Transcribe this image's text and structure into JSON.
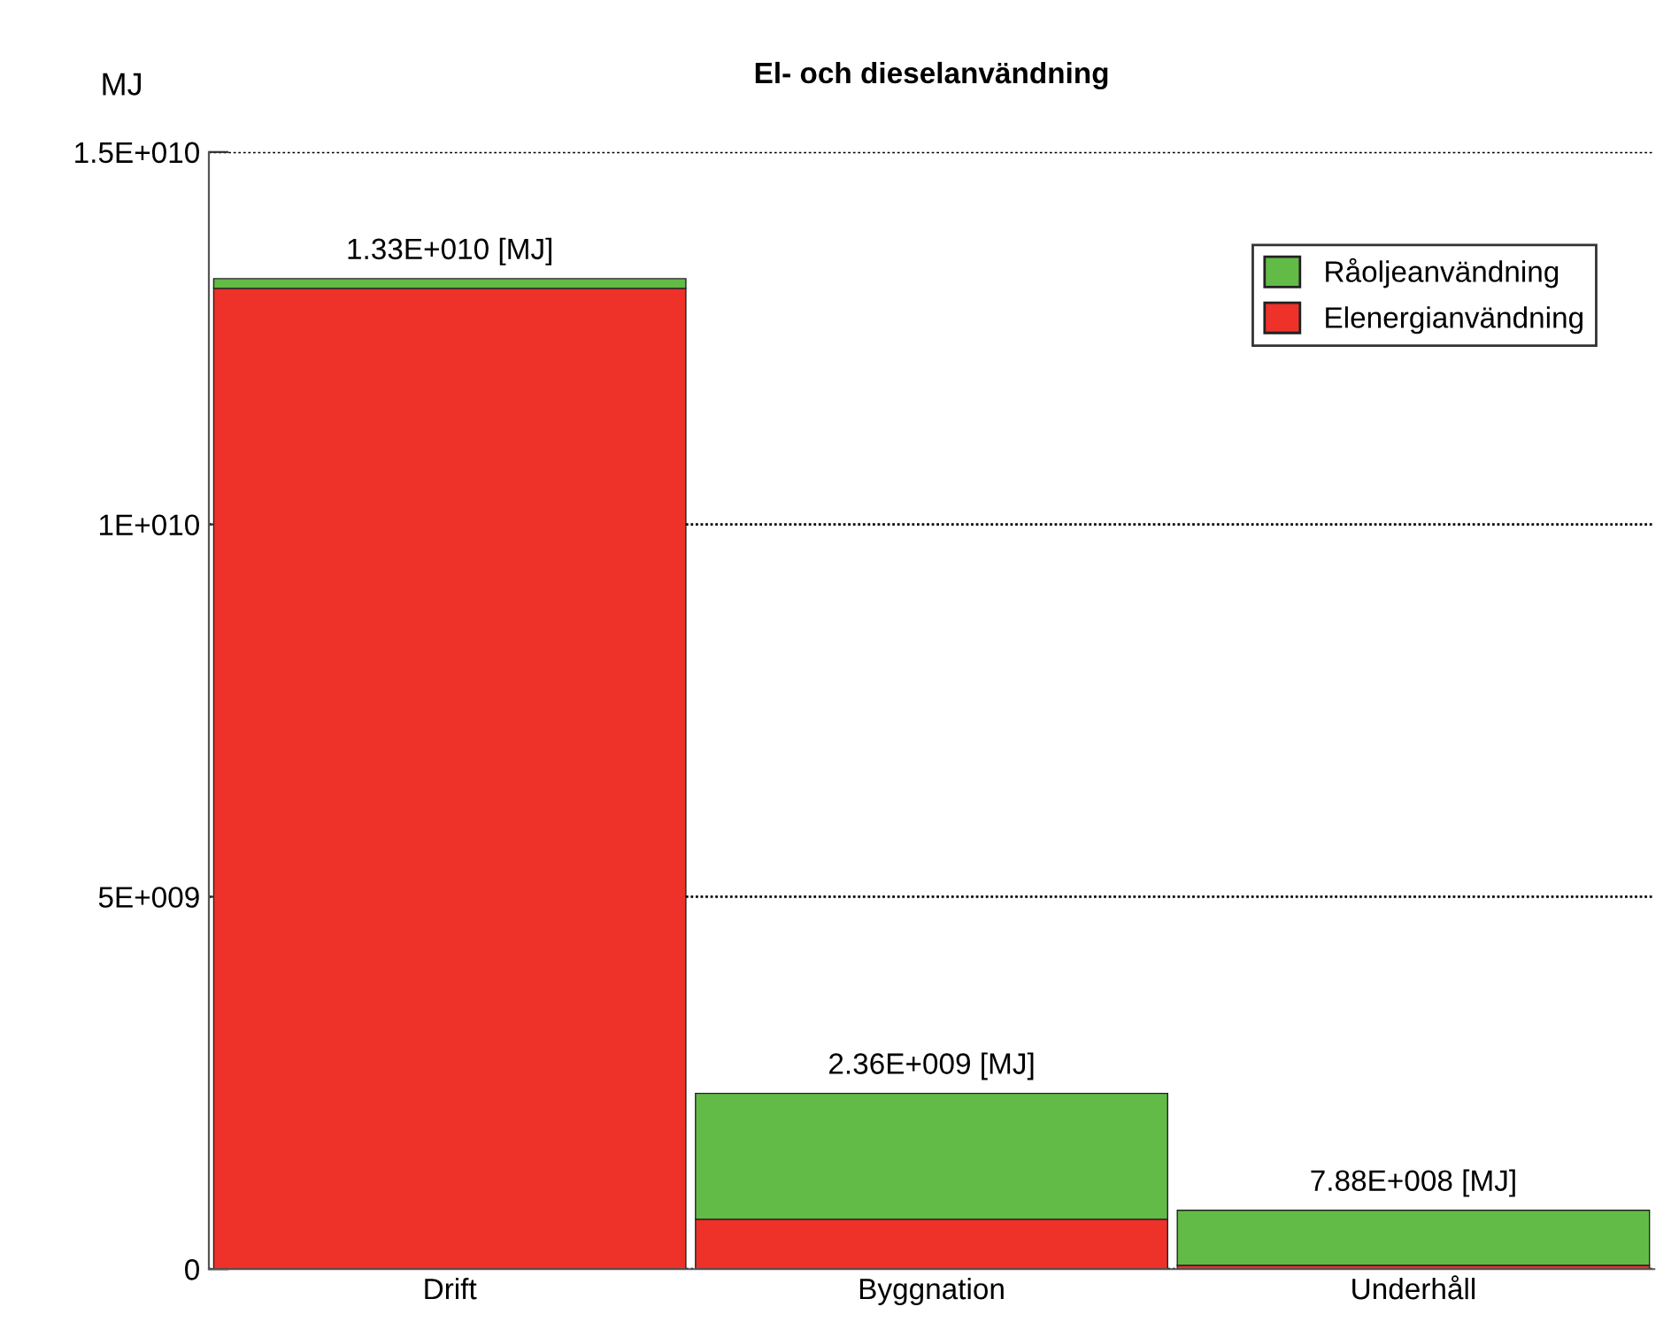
{
  "chart_data": {
    "type": "bar",
    "title": "El- och dieselanvändning",
    "ylabel": "MJ",
    "stacked": true,
    "categories": [
      "Drift",
      "Byggnation",
      "Underhåll"
    ],
    "series": [
      {
        "name": "Elenergianvändning",
        "color": "#ee3129",
        "values": [
          13170000000,
          670000000,
          50000000
        ]
      },
      {
        "name": "Råoljeanvändning",
        "color": "#62bb46",
        "values": [
          130000000,
          1690000000,
          740000000
        ]
      }
    ],
    "totals": [
      "1.33E+010 [MJ]",
      "2.36E+009 [MJ]",
      "7.88E+008 [MJ]"
    ],
    "ylim": [
      0,
      15000000000
    ],
    "yticks": [
      {
        "value": 0,
        "label": "0"
      },
      {
        "value": 5000000000,
        "label": "5E+009"
      },
      {
        "value": 10000000000,
        "label": "1E+010"
      },
      {
        "value": 15000000000,
        "label": "1.5E+010"
      }
    ],
    "grid": "y",
    "legend": "top right"
  }
}
